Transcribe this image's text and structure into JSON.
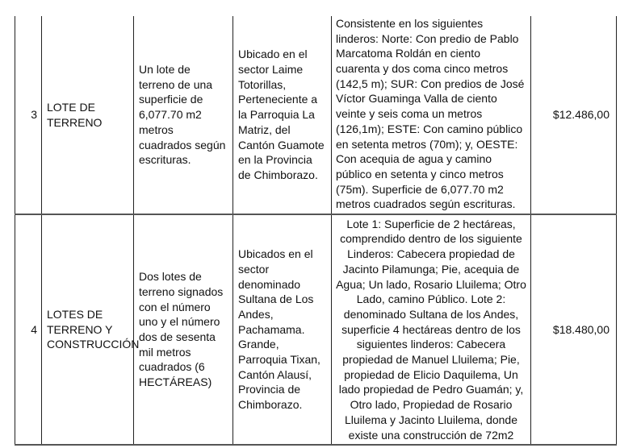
{
  "rows": [
    {
      "number": "3",
      "type": "LOTE DE TERRENO",
      "description": "Un lote de terreno de una superficie de 6,077.70 m2 metros cuadrados según escrituras.",
      "location": "Ubicado en el sector Laime Totorillas, Perteneciente a la Parroquia La Matriz, del Cantón Guamote en la Provincia de Chimborazo.",
      "boundaries": "Consistente en los siguientes linderos: Norte: Con predio de Pablo Marcatoma Roldán en ciento cuarenta y dos coma cinco metros (142,5 m); SUR: Con predios de José Víctor Guaminga Valla de ciento veinte y seis coma un metros (126,1m); ESTE: Con camino público en setenta metros (70m); y, OESTE: Con acequia de agua y camino público en setenta y cinco metros (75m). Superficie de 6,077.70 m2 metros cuadrados según escrituras.",
      "value": "$12.486,00"
    },
    {
      "number": "4",
      "type": "LOTES DE TERRENO Y CONSTRUCCIÓN",
      "description": "Dos lotes de terreno signados con el número uno y el número dos de sesenta mil metros cuadrados (6 HECTÁREAS)",
      "location": "Ubicados en el sector denominado Sultana de Los Andes, Pachamama. Grande, Parroquia Tixan, Cantón Alausí, Provincia de Chimborazo.",
      "boundaries": "Lote 1: Superficie de 2 hectáreas, comprendido dentro de los siguiente Linderos: Cabecera  propiedad de Jacinto Pilamunga; Pie, acequia de Agua; Un lado, Rosario Lluilema; Otro Lado, camino Público. Lote 2: denominado Sultana de los Andes, superficie 4 hectáreas dentro de los siguientes linderos:  Cabecera propiedad de Manuel Lluilema; Pie, propiedad de Elicio Daquilema, Un lado propiedad de Pedro Guamán; y, Otro lado, Propiedad de Rosario Lluilema y Jacinto Lluilema, donde existe una construcción de 72m2",
      "value": "$18.480,00"
    }
  ]
}
